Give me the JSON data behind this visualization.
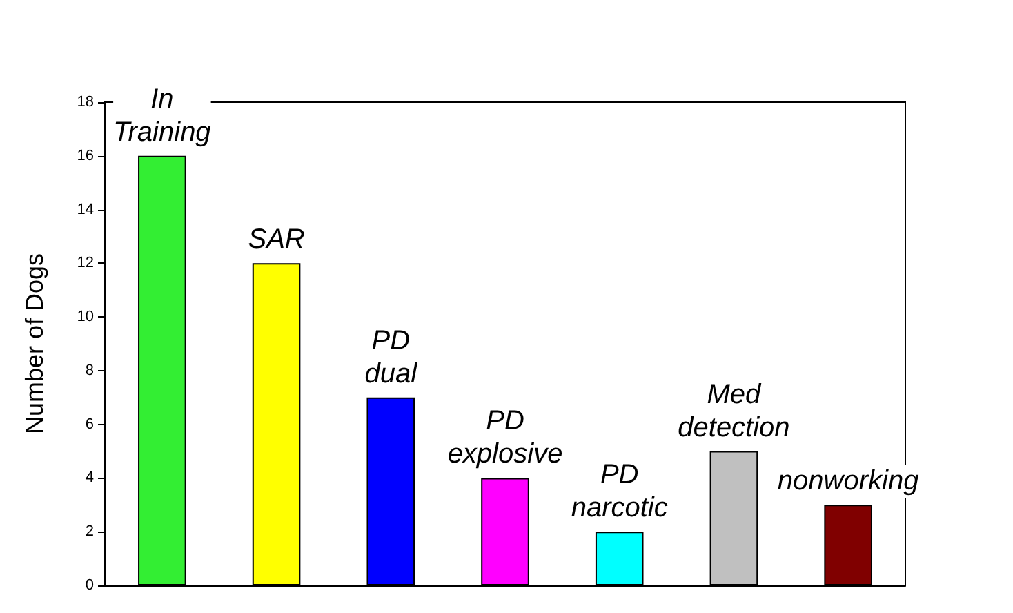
{
  "chart_data": {
    "type": "bar",
    "ylabel": "Number of Dogs",
    "categories": [
      "In Training",
      "SAR",
      "PD dual",
      "PD explosive",
      "PD narcotic",
      "Med detection",
      "nonworking"
    ],
    "values": [
      16,
      12,
      7,
      4,
      2,
      5,
      3
    ],
    "colors": [
      "#33ee33",
      "#ffff00",
      "#0000ff",
      "#ff00ff",
      "#00ffff",
      "#c0c0c0",
      "#800000"
    ],
    "ylim": [
      0,
      18
    ],
    "yticks": [
      0,
      2,
      4,
      6,
      8,
      10,
      12,
      14,
      16,
      18
    ],
    "grid": false
  }
}
